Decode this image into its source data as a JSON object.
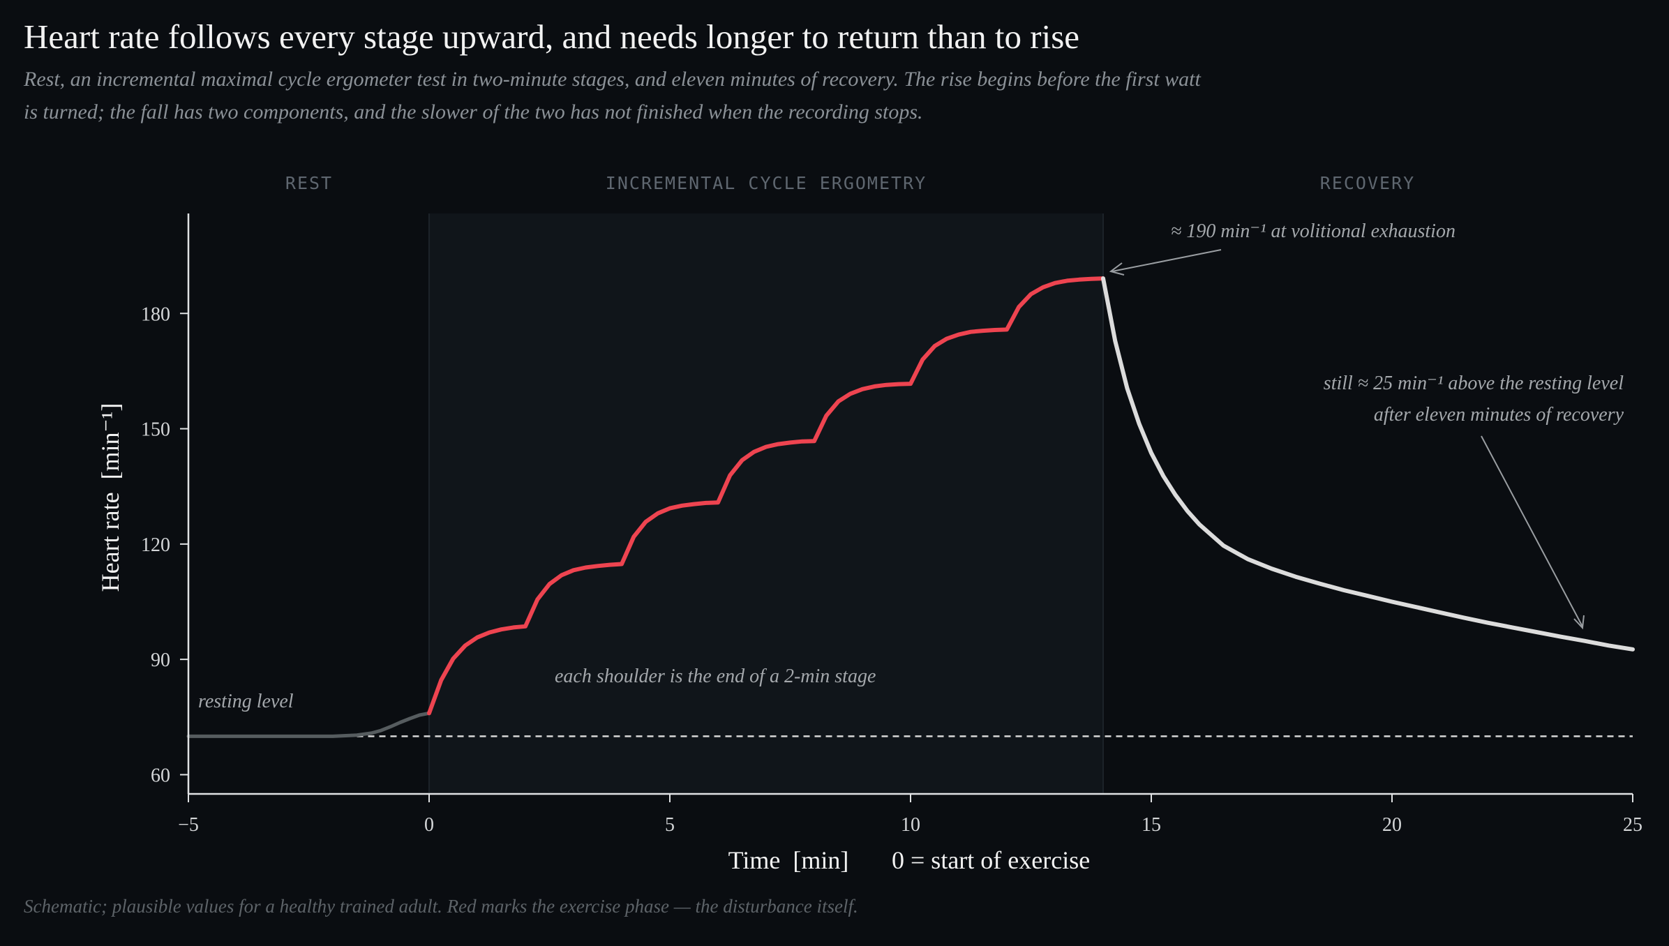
{
  "header": {
    "title": "Heart rate follows every stage upward, and needs longer to return than to rise",
    "subtitle": "Rest, an incremental maximal cycle ergometer test in two-minute stages, and eleven minutes of recovery. The rise begins before the first watt is turned; the fall has two components, and the slower of the two has not finished when the recording stops."
  },
  "footnote": "Schematic; plausible values for a healthy trained adult. Red marks the exercise phase — the disturbance itself.",
  "colors": {
    "background": "#0a0d11",
    "exercise_band": "#10151a",
    "rest_line": "#565c5f",
    "exercise_line": "#ee4450",
    "recovery_line": "#dcdcdc",
    "axis": "#e0e2e4",
    "resting_reference": "#d8d8d8"
  },
  "chart_data": {
    "type": "line",
    "title": "Heart rate follows every stage upward, and needs longer to return than to rise",
    "xlabel": "Time  [min]",
    "xlabel_note": "0 = start of exercise",
    "ylabel": "Heart rate  [min⁻¹]",
    "xlim": [
      -5,
      25
    ],
    "ylim": [
      55,
      206
    ],
    "x_ticks": [
      -5,
      0,
      5,
      10,
      15,
      20,
      25
    ],
    "x_tick_labels": [
      "−5",
      "0",
      "5",
      "10",
      "15",
      "20",
      "25"
    ],
    "y_ticks": [
      60,
      90,
      120,
      150,
      180
    ],
    "y_tick_labels": [
      "60",
      "90",
      "120",
      "150",
      "180"
    ],
    "grid": false,
    "phases": [
      {
        "label": "REST",
        "x_start": -5,
        "x_end": 0
      },
      {
        "label": "INCREMENTAL CYCLE ERGOMETRY",
        "x_start": 0,
        "x_end": 14
      },
      {
        "label": "RECOVERY",
        "x_start": 14,
        "x_end": 25
      }
    ],
    "resting_level": 70,
    "series": [
      {
        "phase": "rest",
        "x": [
          -5,
          -4,
          -3,
          -2,
          -1.5,
          -1.2,
          -1,
          -0.8,
          -0.6,
          -0.4,
          -0.2,
          0
        ],
        "y": [
          70,
          70,
          70,
          70,
          70.3,
          70.8,
          71.5,
          72.5,
          73.6,
          74.6,
          75.5,
          76
        ]
      },
      {
        "phase": "exercise",
        "x": [
          0,
          0.25,
          0.5,
          0.75,
          1,
          1.25,
          1.5,
          1.75,
          2,
          2.25,
          2.5,
          2.75,
          3,
          3.25,
          3.5,
          3.75,
          4,
          4.25,
          4.5,
          4.75,
          5,
          5.25,
          5.5,
          5.75,
          6,
          6.25,
          6.5,
          6.75,
          7,
          7.25,
          7.5,
          7.75,
          8,
          8.25,
          8.5,
          8.75,
          9,
          9.25,
          9.5,
          9.75,
          10,
          10.25,
          10.5,
          10.75,
          11,
          11.25,
          11.5,
          11.75,
          12,
          12.25,
          12.5,
          12.75,
          13,
          13.25,
          13.5,
          13.75,
          14
        ],
        "y": [
          76,
          84.6,
          90.2,
          93.6,
          95.7,
          97.0,
          97.8,
          98.3,
          98.6,
          105.6,
          109.6,
          111.9,
          113.2,
          113.9,
          114.3,
          114.6,
          114.8,
          121.9,
          125.8,
          128.0,
          129.3,
          130.0,
          130.4,
          130.7,
          130.8,
          137.9,
          141.8,
          144.0,
          145.3,
          146.0,
          146.4,
          146.7,
          146.8,
          153.4,
          157.1,
          159.1,
          160.3,
          161.0,
          161.4,
          161.6,
          161.7,
          168.0,
          171.5,
          173.4,
          174.5,
          175.2,
          175.5,
          175.7,
          175.8,
          181.7,
          185.0,
          186.8,
          187.9,
          188.5,
          188.8,
          189.0,
          189.1
        ]
      },
      {
        "phase": "recovery",
        "x": [
          14,
          14.25,
          14.5,
          14.75,
          15,
          15.25,
          15.5,
          15.75,
          16,
          16.5,
          17,
          17.5,
          18,
          18.5,
          19,
          19.5,
          20,
          20.5,
          21,
          21.5,
          22,
          22.5,
          23,
          23.5,
          24,
          24.5,
          25
        ],
        "y": [
          189.1,
          172.8,
          160.5,
          151.2,
          143.7,
          137.7,
          132.8,
          128.6,
          125.1,
          119.6,
          116.1,
          113.6,
          111.5,
          109.7,
          108.0,
          106.5,
          105.0,
          103.6,
          102.2,
          100.8,
          99.5,
          98.3,
          97.1,
          95.9,
          94.8,
          93.6,
          92.6
        ]
      }
    ],
    "annotations": [
      {
        "text": "≈ 190 min⁻¹ at volitional exhaustion",
        "x": 14,
        "y": 189
      },
      {
        "text_lines": [
          "still ≈ 25 min⁻¹ above the resting level",
          "after eleven minutes of recovery"
        ],
        "x": 24,
        "y": 95.7
      },
      {
        "text": "each shoulder is the end of a 2-min stage"
      },
      {
        "text": "resting level"
      }
    ]
  }
}
